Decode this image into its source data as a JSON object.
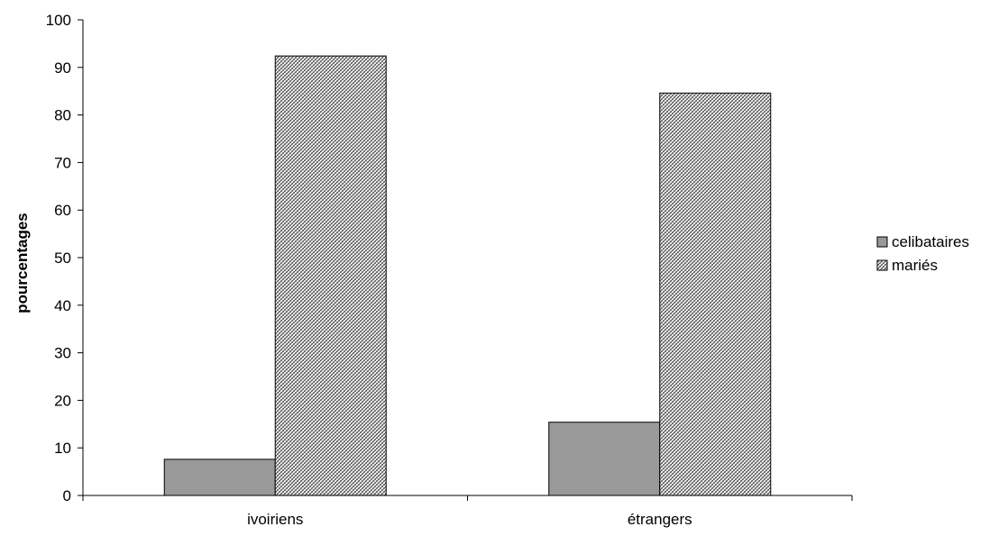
{
  "chart_data": {
    "type": "bar",
    "title": "",
    "xlabel": "",
    "ylabel": "pourcentages",
    "categories": [
      "ivoiriens",
      "étrangers"
    ],
    "series": [
      {
        "name": "celibataires",
        "values": [
          7.6,
          15.4
        ],
        "color": "#999999",
        "pattern": "solid"
      },
      {
        "name": "mariés",
        "values": [
          92.4,
          84.6
        ],
        "color": "#ffffff",
        "pattern": "crosshatch"
      }
    ],
    "ylim": [
      0,
      100
    ],
    "yticks": [
      "0",
      "10",
      "20",
      "30",
      "40",
      "50",
      "60",
      "70",
      "80",
      "90",
      "100"
    ],
    "grid": false,
    "legend_position": "right"
  }
}
